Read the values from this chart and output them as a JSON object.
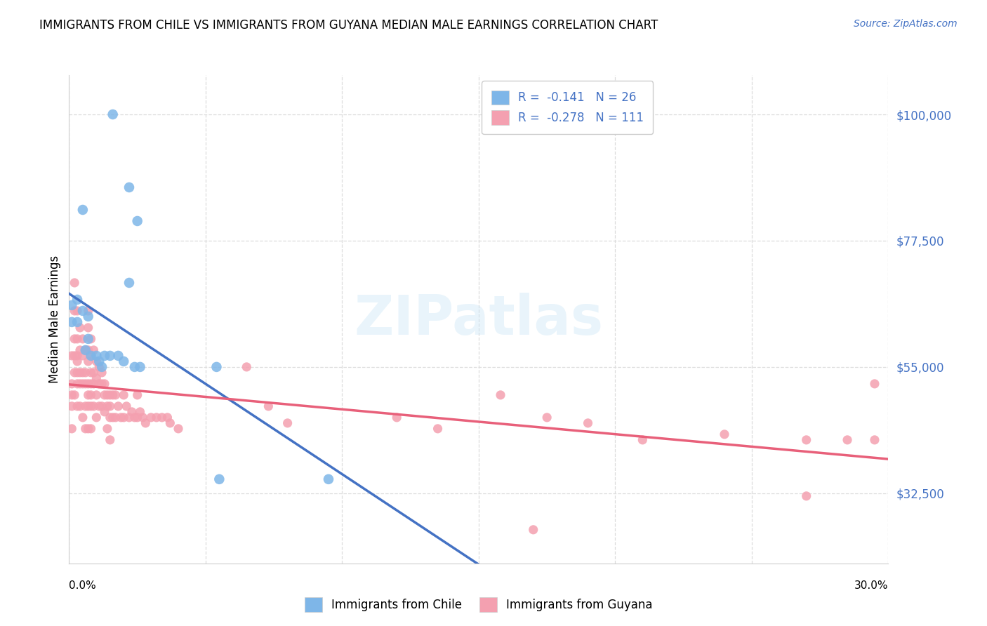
{
  "title": "IMMIGRANTS FROM CHILE VS IMMIGRANTS FROM GUYANA MEDIAN MALE EARNINGS CORRELATION CHART",
  "source": "Source: ZipAtlas.com",
  "ylabel": "Median Male Earnings",
  "y_ticks": [
    32500,
    55000,
    77500,
    100000
  ],
  "y_tick_labels": [
    "$32,500",
    "$55,000",
    "$77,500",
    "$100,000"
  ],
  "xmin": 0.0,
  "xmax": 0.3,
  "ymin": 20000,
  "ymax": 107000,
  "chile_color": "#7EB6E8",
  "guyana_color": "#F4A0B0",
  "chile_line_color": "#4472C4",
  "guyana_line_color": "#E8607A",
  "dashed_line_color": "#aaaaaa",
  "legend_line1": "R =  -0.141   N = 26",
  "legend_line2": "R =  -0.278   N = 111",
  "watermark": "ZIPatlas",
  "chile_scatter_x": [
    0.016,
    0.005,
    0.022,
    0.025,
    0.022,
    0.001,
    0.001,
    0.003,
    0.003,
    0.005,
    0.007,
    0.007,
    0.006,
    0.008,
    0.01,
    0.011,
    0.012,
    0.013,
    0.015,
    0.018,
    0.02,
    0.024,
    0.026,
    0.054,
    0.055,
    0.095
  ],
  "chile_scatter_y": [
    100000,
    83000,
    87000,
    81000,
    70000,
    63000,
    66000,
    63000,
    67000,
    65000,
    64000,
    60000,
    58000,
    57000,
    57000,
    56000,
    55000,
    57000,
    57000,
    57000,
    56000,
    55000,
    55000,
    55000,
    35000,
    35000
  ],
  "guyana_scatter_x": [
    0.001,
    0.001,
    0.001,
    0.001,
    0.001,
    0.002,
    0.002,
    0.002,
    0.002,
    0.002,
    0.002,
    0.003,
    0.003,
    0.003,
    0.003,
    0.003,
    0.003,
    0.003,
    0.004,
    0.004,
    0.004,
    0.004,
    0.004,
    0.005,
    0.005,
    0.005,
    0.005,
    0.005,
    0.006,
    0.006,
    0.006,
    0.006,
    0.006,
    0.007,
    0.007,
    0.007,
    0.007,
    0.007,
    0.007,
    0.007,
    0.007,
    0.008,
    0.008,
    0.008,
    0.008,
    0.008,
    0.008,
    0.008,
    0.009,
    0.009,
    0.009,
    0.009,
    0.01,
    0.01,
    0.01,
    0.01,
    0.011,
    0.011,
    0.011,
    0.012,
    0.012,
    0.012,
    0.013,
    0.013,
    0.013,
    0.014,
    0.014,
    0.014,
    0.015,
    0.015,
    0.015,
    0.015,
    0.016,
    0.016,
    0.017,
    0.017,
    0.018,
    0.019,
    0.02,
    0.02,
    0.021,
    0.022,
    0.023,
    0.024,
    0.025,
    0.025,
    0.026,
    0.027,
    0.028,
    0.03,
    0.032,
    0.034,
    0.036,
    0.037,
    0.04,
    0.065,
    0.073,
    0.08,
    0.12,
    0.135,
    0.158,
    0.175,
    0.19,
    0.21,
    0.24,
    0.27,
    0.285,
    0.295,
    0.17,
    0.27,
    0.295
  ],
  "guyana_scatter_y": [
    57000,
    52000,
    50000,
    48000,
    44000,
    70000,
    65000,
    60000,
    57000,
    54000,
    50000,
    65000,
    60000,
    57000,
    56000,
    54000,
    52000,
    48000,
    62000,
    58000,
    54000,
    52000,
    48000,
    60000,
    57000,
    54000,
    52000,
    46000,
    58000,
    54000,
    52000,
    48000,
    44000,
    65000,
    62000,
    58000,
    56000,
    52000,
    50000,
    48000,
    44000,
    60000,
    57000,
    54000,
    52000,
    50000,
    48000,
    44000,
    58000,
    54000,
    52000,
    48000,
    56000,
    53000,
    50000,
    46000,
    55000,
    52000,
    48000,
    54000,
    52000,
    48000,
    52000,
    50000,
    47000,
    50000,
    48000,
    44000,
    50000,
    48000,
    46000,
    42000,
    50000,
    46000,
    50000,
    46000,
    48000,
    46000,
    50000,
    46000,
    48000,
    46000,
    47000,
    46000,
    50000,
    46000,
    47000,
    46000,
    45000,
    46000,
    46000,
    46000,
    46000,
    45000,
    44000,
    55000,
    48000,
    45000,
    46000,
    44000,
    50000,
    46000,
    45000,
    42000,
    43000,
    42000,
    42000,
    42000,
    26000,
    32000,
    52000
  ]
}
